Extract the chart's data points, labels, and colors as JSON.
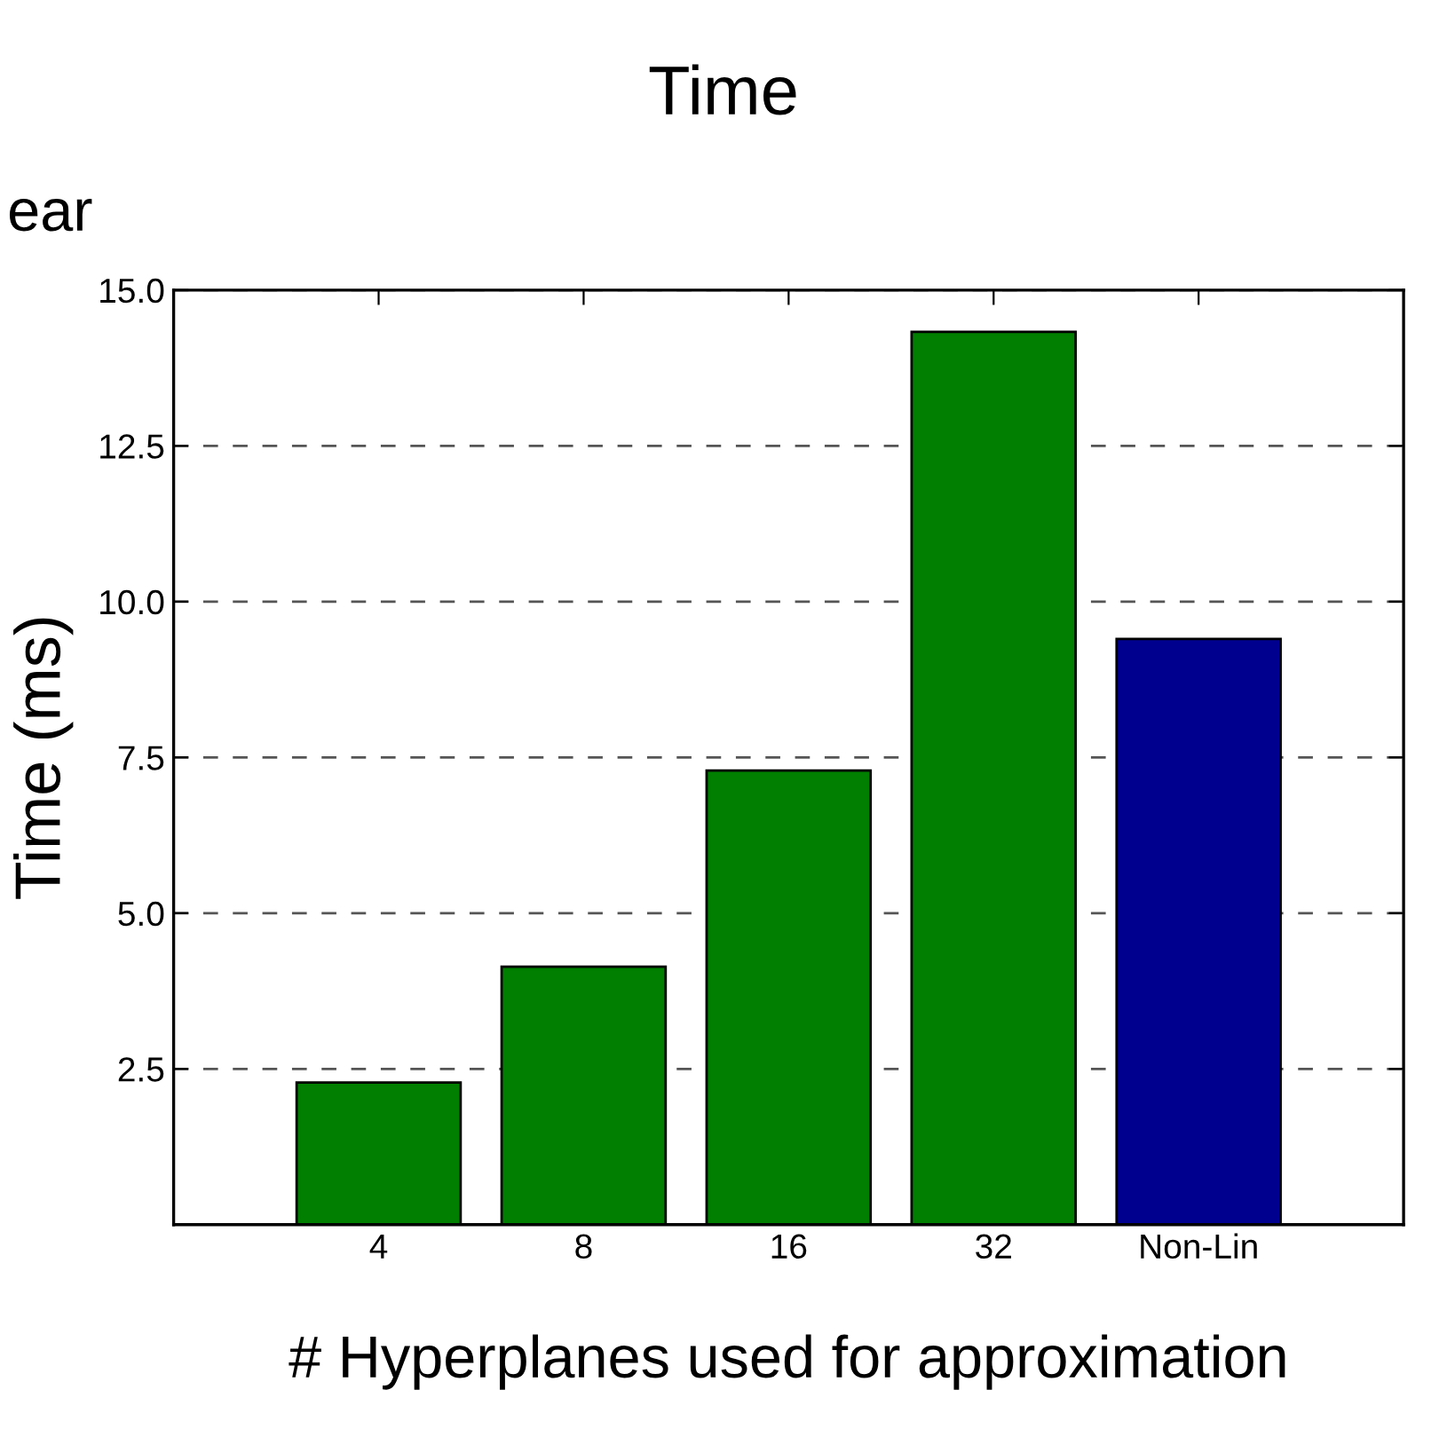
{
  "chart_data": {
    "type": "bar",
    "title": "Time",
    "xlabel": "# Hyperplanes used for approximation",
    "ylabel": "Time (ms)",
    "categories": [
      "4",
      "8",
      "16",
      "32",
      "Non-Lin"
    ],
    "values": [
      2.28,
      4.14,
      7.29,
      14.33,
      9.4
    ],
    "colors": [
      "#007f00",
      "#007f00",
      "#007f00",
      "#007f00",
      "#00008f"
    ],
    "ylim": [
      0,
      15
    ],
    "yticks": [
      2.5,
      {
        "value": 5,
        "label": "5.0"
      },
      7.5,
      {
        "value": 10,
        "label": "10.0"
      },
      12.5,
      {
        "value": 15,
        "label": "15.0"
      }
    ],
    "grid": "y",
    "annotations": [
      "ear"
    ]
  }
}
